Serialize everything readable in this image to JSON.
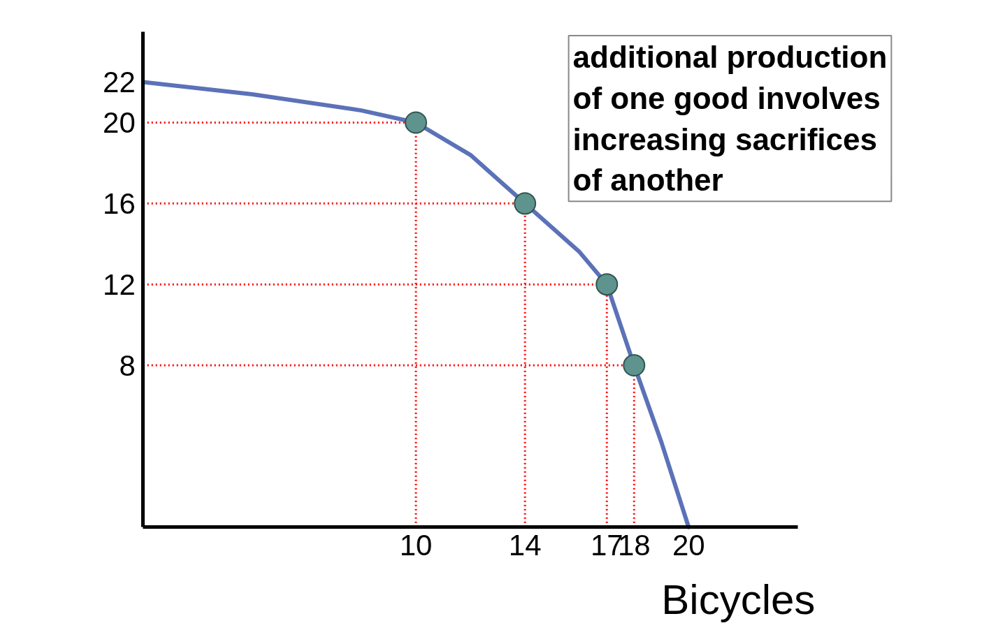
{
  "chart_data": {
    "type": "line",
    "xlabel": "Bicycles",
    "annotations": [
      "additional production of one good involves increasing sacrifices of another"
    ],
    "xlim": [
      0,
      24
    ],
    "ylim": [
      0,
      24.5
    ],
    "xticks": [
      10,
      14,
      17,
      18,
      20
    ],
    "yticks": [
      8,
      12,
      16,
      20,
      22
    ],
    "grid": false,
    "series": [
      {
        "color": "#5b72b8",
        "x": [
          0,
          4,
          8,
          10,
          12,
          14,
          16,
          17,
          18,
          19,
          20
        ],
        "values": [
          22,
          21.4,
          20.6,
          20,
          18.4,
          16,
          13.6,
          12,
          8,
          4.2,
          0
        ],
        "marker": "none"
      },
      {
        "type": "scatter",
        "color": "#5f938d",
        "x": [
          10,
          14,
          17,
          18
        ],
        "values": [
          20,
          16,
          12,
          8
        ],
        "marker": "circle"
      }
    ],
    "ref_lines": [
      {
        "axis": "y",
        "value": 20,
        "color": "#ff0000",
        "line_style": "dotted"
      },
      {
        "axis": "y",
        "value": 16,
        "color": "#ff0000",
        "line_style": "dotted"
      },
      {
        "axis": "y",
        "value": 12,
        "color": "#ff0000",
        "line_style": "dotted"
      },
      {
        "axis": "y",
        "value": 8,
        "color": "#ff0000",
        "line_style": "dotted"
      },
      {
        "axis": "x",
        "value": 10,
        "color": "#ff0000",
        "line_style": "dotted"
      },
      {
        "axis": "x",
        "value": 14,
        "color": "#ff0000",
        "line_style": "dotted"
      },
      {
        "axis": "x",
        "value": 17,
        "color": "#ff0000",
        "line_style": "dotted"
      },
      {
        "axis": "x",
        "value": 18,
        "color": "#ff0000",
        "line_style": "dotted"
      }
    ]
  }
}
